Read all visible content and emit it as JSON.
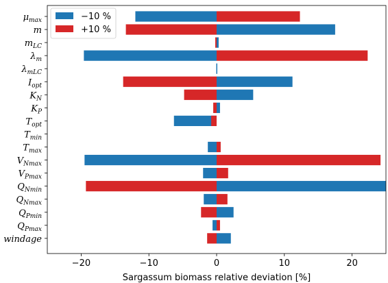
{
  "chart_data": {
    "type": "bar",
    "orientation": "horizontal",
    "xlabel": "Sargassum biomass relative deviation [%]",
    "ylabel": "",
    "xlim": [
      -25,
      25
    ],
    "xticks": [
      -20,
      -10,
      0,
      10,
      20
    ],
    "grid": false,
    "legend_position": "top-left",
    "categories": [
      {
        "base": "μ",
        "sub": "max"
      },
      {
        "base": "m",
        "sub": ""
      },
      {
        "base": "m",
        "sub": "LC"
      },
      {
        "base": "λ",
        "sub": "m"
      },
      {
        "base": "λ",
        "sub": "mLC"
      },
      {
        "base": "I",
        "sub": "opt"
      },
      {
        "base": "K",
        "sub": "N"
      },
      {
        "base": "K",
        "sub": "P"
      },
      {
        "base": "T",
        "sub": "opt"
      },
      {
        "base": "T",
        "sub": "min"
      },
      {
        "base": "T",
        "sub": "max"
      },
      {
        "base": "V",
        "sub": "Nmax"
      },
      {
        "base": "V",
        "sub": "Pmax"
      },
      {
        "base": "Q",
        "sub": "Nmin"
      },
      {
        "base": "Q",
        "sub": "Nmax"
      },
      {
        "base": "Q",
        "sub": "Pmin"
      },
      {
        "base": "Q",
        "sub": "Pmax"
      },
      {
        "base": "windage",
        "sub": ""
      }
    ],
    "series": [
      {
        "name": "−10 %",
        "color": "#1f77b4",
        "values": [
          -12,
          17.5,
          0.3,
          -19.6,
          0.05,
          11.2,
          5.4,
          0.5,
          -6.3,
          0,
          -1.3,
          -19.5,
          -2,
          25.5,
          -1.9,
          2.5,
          -0.6,
          2.1
        ]
      },
      {
        "name": "+10 %",
        "color": "#d62728",
        "values": [
          12.3,
          -13.4,
          -0.2,
          22.3,
          0,
          -13.8,
          -4.8,
          -0.5,
          -0.8,
          0,
          0.6,
          24.2,
          1.7,
          -19.3,
          1.6,
          -2.3,
          0.5,
          -1.4
        ]
      }
    ]
  }
}
